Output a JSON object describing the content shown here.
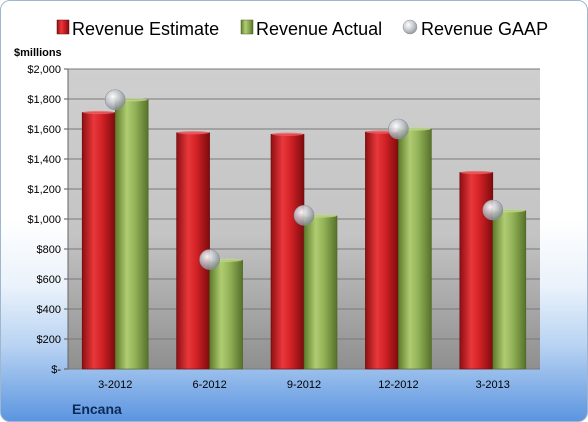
{
  "chart_data": {
    "type": "bar",
    "categories": [
      "3-2012",
      "6-2012",
      "9-2012",
      "12-2012",
      "3-2013"
    ],
    "series": [
      {
        "name": "Revenue Estimate",
        "kind": "bar",
        "values": [
          1710,
          1575,
          1565,
          1580,
          1310
        ],
        "color": "#cc1f24"
      },
      {
        "name": "Revenue Actual",
        "kind": "bar",
        "values": [
          1795,
          725,
          1020,
          1600,
          1055
        ],
        "color": "#8aaa4c"
      },
      {
        "name": "Revenue GAAP",
        "kind": "point",
        "values": [
          1795,
          730,
          1025,
          1600,
          1060
        ],
        "color": "#b8bcc4"
      }
    ],
    "ylabel": "$millions",
    "ylim": [
      0,
      2000
    ],
    "yticks": [
      0,
      200,
      400,
      600,
      800,
      1000,
      1200,
      1400,
      1600,
      1800,
      2000
    ],
    "ytick_labels": [
      "$-",
      "$200",
      "$400",
      "$600",
      "$800",
      "$1,000",
      "$1,200",
      "$1,400",
      "$1,600",
      "$1,800",
      "$2,000"
    ],
    "grid": true,
    "legend": "top"
  },
  "footer": {
    "company": "Encana"
  }
}
